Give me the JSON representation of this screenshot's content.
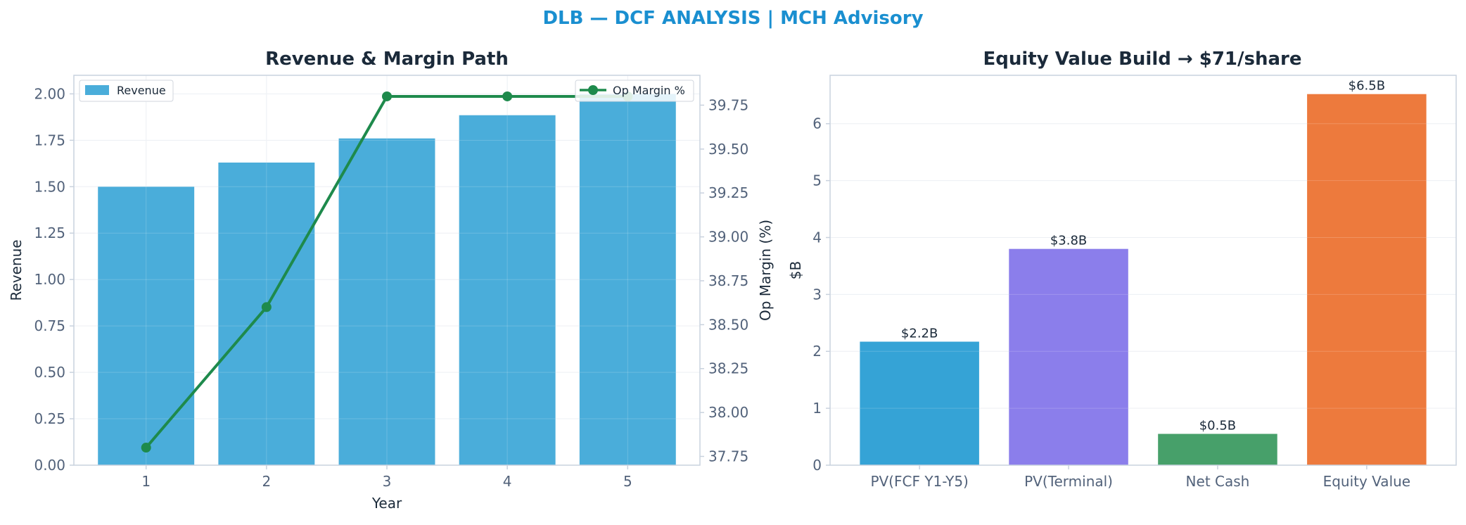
{
  "title": "DLB — DCF ANALYSIS | MCH Advisory",
  "colors": {
    "title": "#1a8fd0",
    "revenue": "#4aadda",
    "margin_line": "#1e8a4c",
    "pv_fcf": "#35a3d6",
    "pv_terminal": "#8b7eeb",
    "net_cash": "#47a06a",
    "equity": "#ed7a3d"
  },
  "chart_data": [
    {
      "type": "bar",
      "title": "Revenue & Margin Path",
      "xlabel": "Year",
      "ylabel": "Revenue",
      "y2label": "Op Margin (%)",
      "categories": [
        "1",
        "2",
        "3",
        "4",
        "5"
      ],
      "ylim": [
        0,
        2.1
      ],
      "y2lim": [
        37.7,
        39.92
      ],
      "yticks": [
        "0.00",
        "0.25",
        "0.50",
        "0.75",
        "1.00",
        "1.25",
        "1.50",
        "1.75",
        "2.00"
      ],
      "y2ticks": [
        "37.75",
        "38.00",
        "38.25",
        "38.50",
        "38.75",
        "39.00",
        "39.25",
        "39.50",
        "39.75"
      ],
      "series": [
        {
          "name": "Revenue",
          "type": "bar",
          "values": [
            1.5,
            1.63,
            1.76,
            1.885,
            2.0
          ]
        },
        {
          "name": "Op Margin %",
          "type": "line",
          "axis": "right",
          "values": [
            37.8,
            38.6,
            39.8,
            39.8,
            39.8
          ]
        }
      ],
      "grid": true,
      "legend": {
        "bar": "upper-left",
        "line": "upper-right"
      }
    },
    {
      "type": "bar",
      "title": "Equity Value Build → $71/share",
      "xlabel": "",
      "ylabel": "$B",
      "categories": [
        "PV(FCF Y1-Y5)",
        "PV(Terminal)",
        "Net Cash",
        "Equity Value"
      ],
      "values": [
        2.17,
        3.8,
        0.55,
        6.52
      ],
      "data_labels": [
        "$2.2B",
        "$3.8B",
        "$0.5B",
        "$6.5B"
      ],
      "ylim": [
        0,
        6.85
      ],
      "yticks": [
        "0",
        "1",
        "2",
        "3",
        "4",
        "5",
        "6"
      ],
      "grid": true
    }
  ]
}
